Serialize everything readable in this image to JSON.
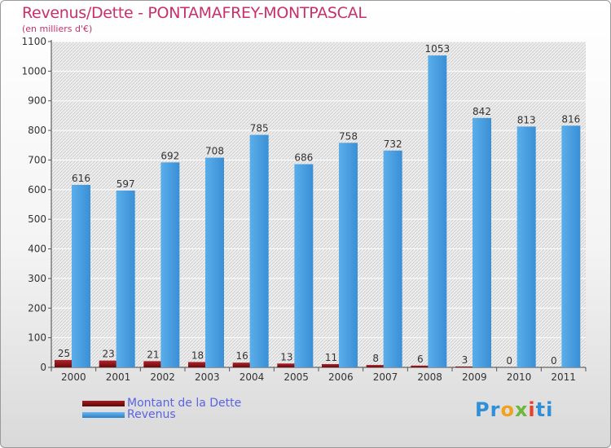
{
  "chart_data": {
    "type": "bar",
    "title": "Revenus/Dette - PONTAMAFREY-MONTPASCAL",
    "subtitle": "(en milliers d'€)",
    "categories": [
      "2000",
      "2001",
      "2002",
      "2003",
      "2004",
      "2005",
      "2006",
      "2007",
      "2008",
      "2009",
      "2010",
      "2011"
    ],
    "series": [
      {
        "name": "Montant de la Dette",
        "color": "#7a0f12",
        "values": [
          25,
          23,
          21,
          18,
          16,
          13,
          11,
          8,
          6,
          3,
          0,
          0
        ]
      },
      {
        "name": "Revenus",
        "color": "#3a93db",
        "values": [
          616,
          597,
          692,
          708,
          785,
          686,
          758,
          732,
          1053,
          842,
          813,
          816
        ]
      }
    ],
    "ylim": [
      0,
      1100
    ],
    "yticks": [
      0,
      100,
      200,
      300,
      400,
      500,
      600,
      700,
      800,
      900,
      1000,
      1100
    ],
    "grid": true,
    "legend": "bottom-left"
  },
  "logo": {
    "text_parts": [
      {
        "t": "Pr",
        "color": "#2f8fd8"
      },
      {
        "t": "o",
        "color": "#f2a11c"
      },
      {
        "t": "x",
        "color": "#6cb83a"
      },
      {
        "t": "i",
        "color": "#e8402e"
      },
      {
        "t": "ti",
        "color": "#2f8fd8"
      }
    ]
  }
}
